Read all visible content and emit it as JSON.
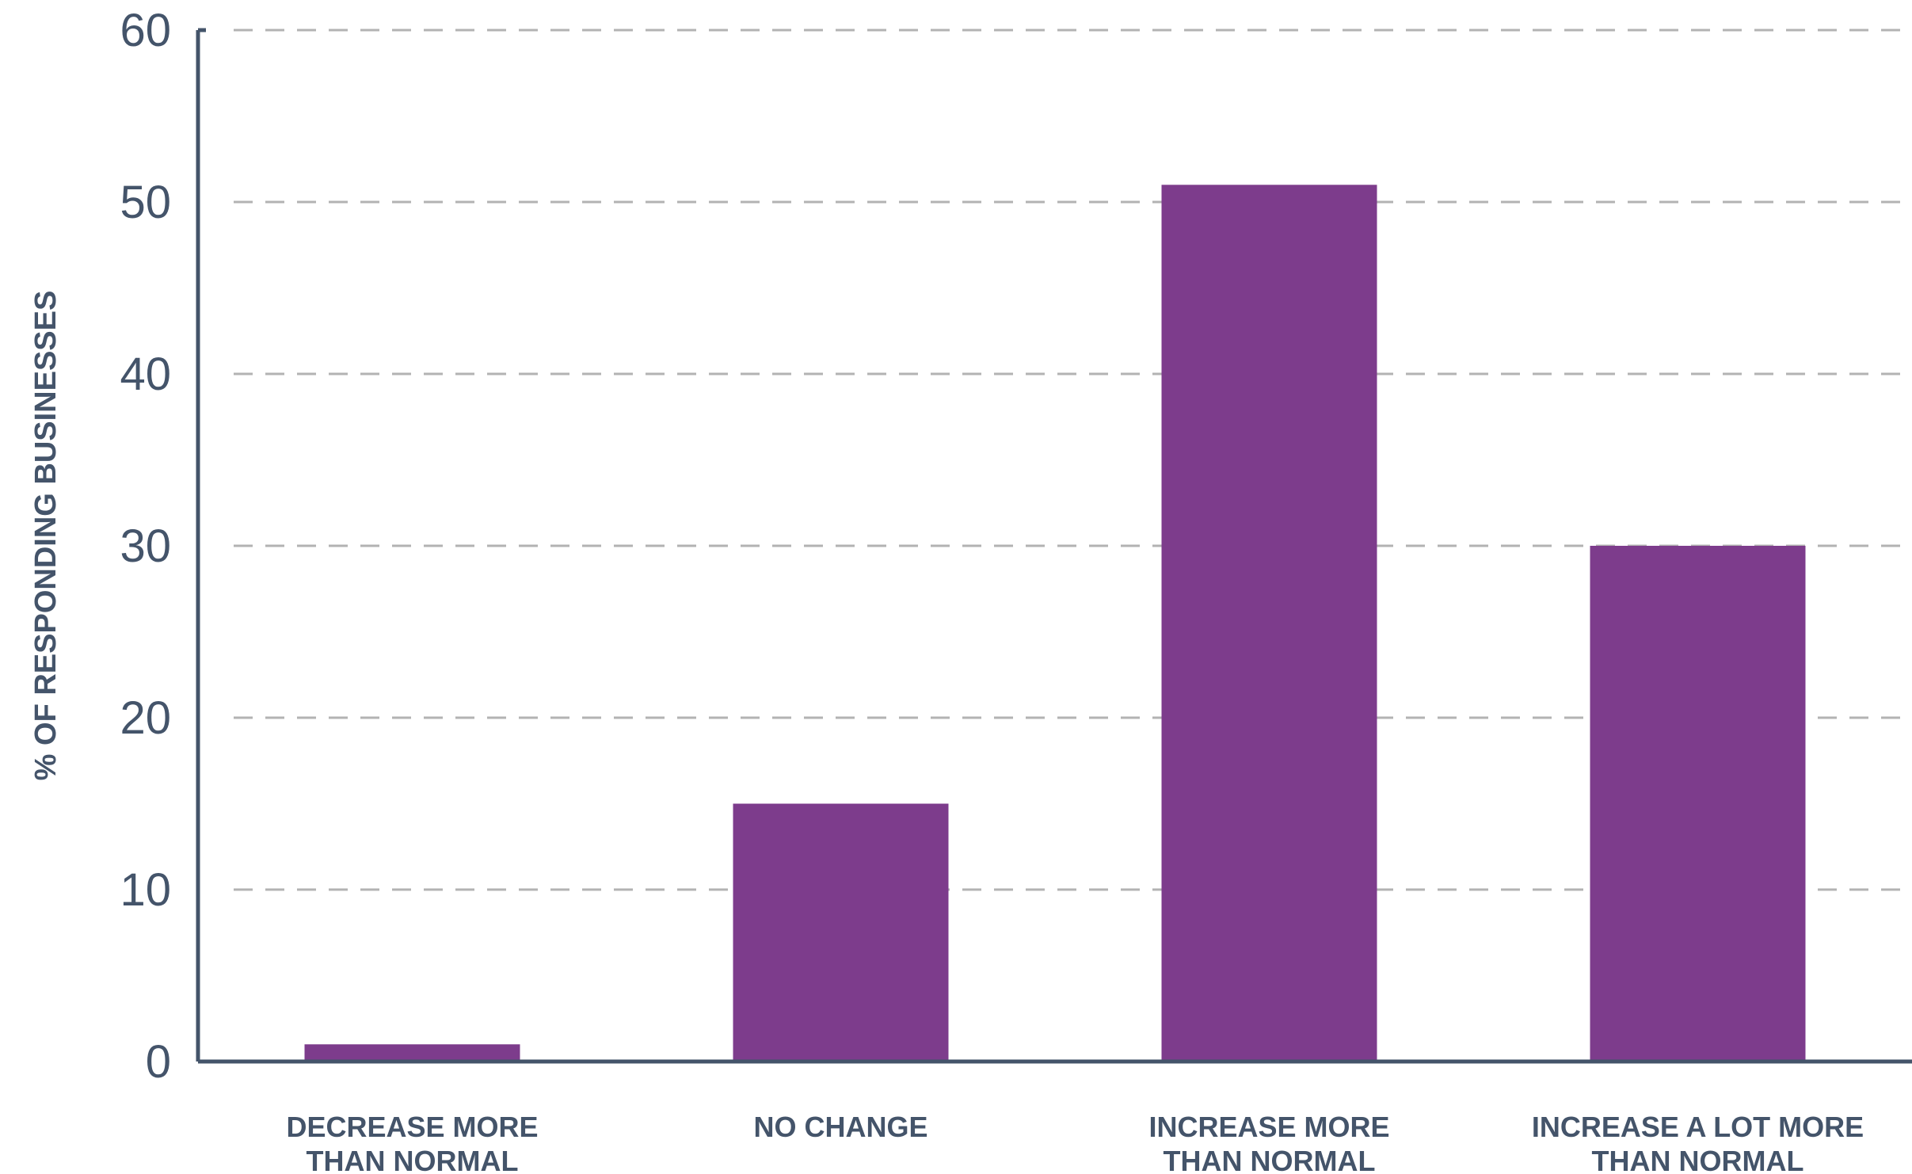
{
  "chart_data": {
    "type": "bar",
    "title": "",
    "xlabel": "",
    "ylabel": "% OF RESPONDING BUSINESSES",
    "categories": [
      [
        "DECREASE MORE",
        "THAN  NORMAL"
      ],
      [
        "NO CHANGE"
      ],
      [
        "INCREASE MORE",
        "THAN  NORMAL"
      ],
      [
        "INCREASE A LOT MORE",
        "THAN  NORMAL"
      ]
    ],
    "values": [
      1,
      15,
      51,
      30
    ],
    "ylim": [
      0,
      60
    ],
    "yticks": [
      0,
      10,
      20,
      30,
      40,
      50,
      60
    ],
    "grid": true,
    "legend": "none",
    "colors": {
      "bar": "#7d3c8c",
      "axis": "#44546a",
      "grid": "#b3b3b3",
      "text": "#44546a"
    }
  }
}
